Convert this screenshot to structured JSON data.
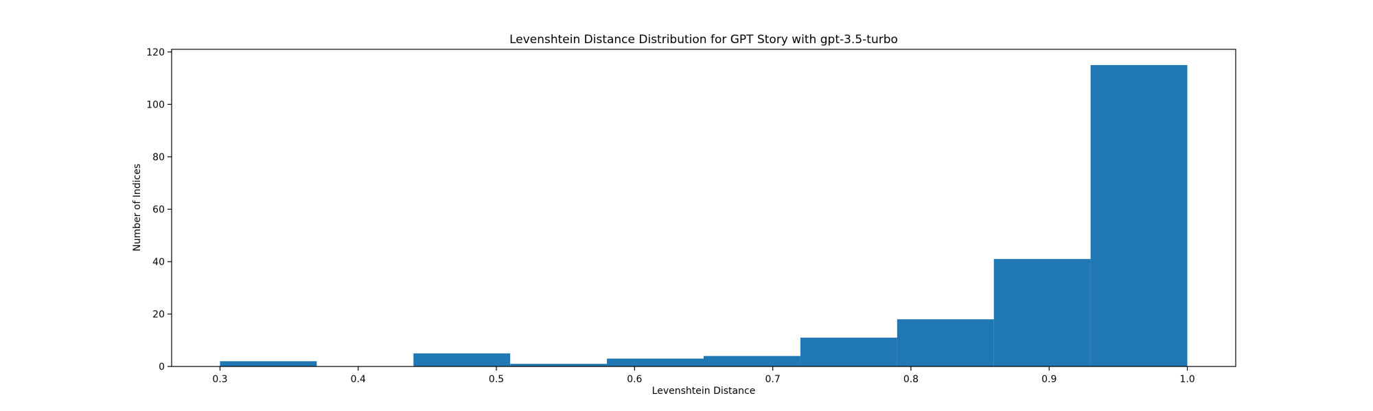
{
  "chart_data": {
    "type": "bar",
    "title": "Levenshtein Distance Distribution for GPT Story with gpt-3.5-turbo",
    "xlabel": "Levenshtein Distance",
    "ylabel": "Number of Indices",
    "xlim": [
      0.265,
      1.035
    ],
    "ylim": [
      0,
      121
    ],
    "x_ticks": [
      0.3,
      0.4,
      0.5,
      0.6,
      0.7,
      0.8,
      0.9,
      1.0
    ],
    "x_tick_labels": [
      "0.3",
      "0.4",
      "0.5",
      "0.6",
      "0.7",
      "0.8",
      "0.9",
      "1.0"
    ],
    "y_ticks": [
      0,
      20,
      40,
      60,
      80,
      100,
      120
    ],
    "y_tick_labels": [
      "0",
      "20",
      "40",
      "60",
      "80",
      "100",
      "120"
    ],
    "bins": [
      {
        "start": 0.3,
        "end": 0.37,
        "count": 2
      },
      {
        "start": 0.37,
        "end": 0.44,
        "count": 0
      },
      {
        "start": 0.44,
        "end": 0.51,
        "count": 5
      },
      {
        "start": 0.51,
        "end": 0.58,
        "count": 1
      },
      {
        "start": 0.58,
        "end": 0.65,
        "count": 3
      },
      {
        "start": 0.65,
        "end": 0.72,
        "count": 4
      },
      {
        "start": 0.72,
        "end": 0.79,
        "count": 11
      },
      {
        "start": 0.79,
        "end": 0.86,
        "count": 18
      },
      {
        "start": 0.86,
        "end": 0.93,
        "count": 41
      },
      {
        "start": 0.93,
        "end": 1.0,
        "count": 115
      }
    ],
    "bar_color": "#1f77b4",
    "grid": false,
    "legend": "none"
  }
}
